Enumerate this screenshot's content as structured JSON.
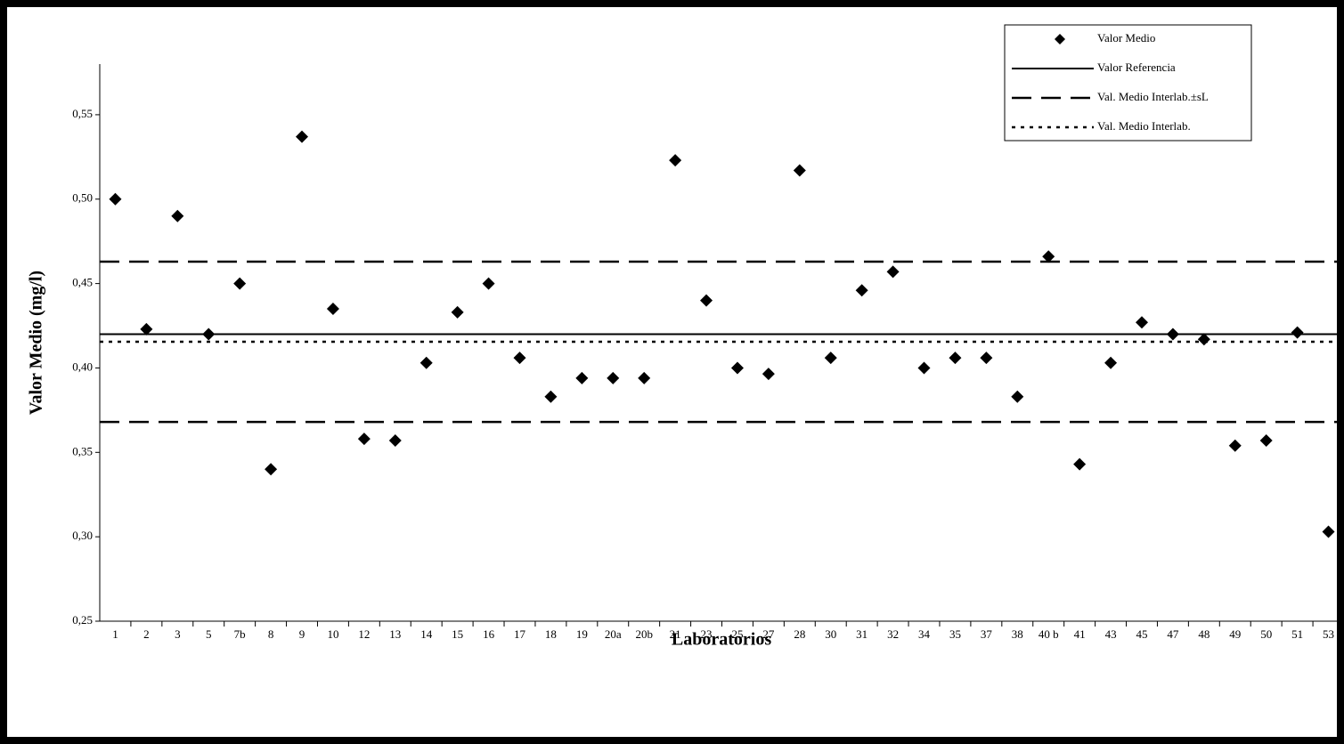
{
  "chart_data": {
    "type": "scatter",
    "x_label": "Laboratorios",
    "y_label": "Valor Medio (mg/l)",
    "categories": [
      "1",
      "2",
      "3",
      "5",
      "7b",
      "8",
      "9",
      "10",
      "12",
      "13",
      "14",
      "15",
      "16",
      "17",
      "18",
      "19",
      "20a",
      "20b",
      "21",
      "23",
      "25",
      "27",
      "28",
      "30",
      "31",
      "32",
      "34",
      "35",
      "37",
      "38",
      "40 b",
      "41",
      "43",
      "45",
      "47",
      "48",
      "49",
      "50",
      "51",
      "53"
    ],
    "series": [
      {
        "name": "Valor Medio",
        "color": "#000000",
        "values": [
          0.5,
          0.423,
          0.49,
          0.42,
          0.45,
          0.34,
          0.537,
          0.435,
          0.358,
          0.357,
          0.403,
          0.433,
          0.45,
          0.406,
          0.383,
          0.394,
          0.394,
          0.394,
          0.523,
          0.44,
          0.4,
          0.3965,
          0.517,
          0.406,
          0.446,
          0.457,
          0.4,
          0.406,
          0.406,
          0.383,
          0.466,
          0.343,
          0.403,
          0.427,
          0.42,
          0.417,
          0.354,
          0.357,
          0.421,
          0.303
        ]
      }
    ],
    "lines": [
      {
        "name": "Valor Referencia",
        "style": "solid",
        "values": [
          0.42
        ]
      },
      {
        "name": "Val. Medio Interlab.±sL",
        "style": "dashed",
        "values": [
          0.463,
          0.368
        ]
      },
      {
        "name": "Val. Medio Interlab.",
        "style": "dotted",
        "values": [
          0.4155
        ]
      }
    ],
    "ylim": [
      0.25,
      0.58
    ],
    "yticks": [
      {
        "value": 0.25,
        "label": "0,25"
      },
      {
        "value": 0.3,
        "label": "0,30"
      },
      {
        "value": 0.35,
        "label": "0,35"
      },
      {
        "value": 0.4,
        "label": "0,40"
      },
      {
        "value": 0.45,
        "label": "0,45"
      },
      {
        "value": 0.5,
        "label": "0,50"
      },
      {
        "value": 0.55,
        "label": "0,55"
      }
    ],
    "legend": "top-right"
  }
}
